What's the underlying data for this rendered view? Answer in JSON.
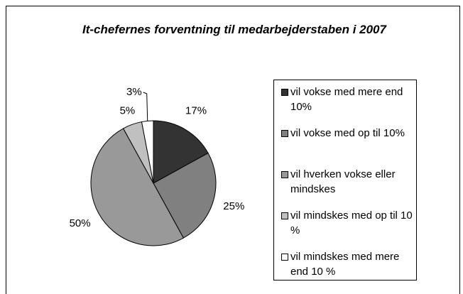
{
  "chart_data": {
    "type": "pie",
    "title": "It-chefernes forventning til medarbejderstaben i 2007",
    "categories": [
      "vil vokse med mere end 10%",
      "vil vokse med op til 10%",
      "vil hverken vokse eller mindskes",
      "vil mindskes med op til 10 %",
      "vil mindskes med mere end 10 %"
    ],
    "values": [
      17,
      25,
      50,
      5,
      3
    ],
    "value_labels": [
      "17%",
      "25%",
      "50%",
      "5%",
      "3%"
    ],
    "colors": [
      "#333333",
      "#808080",
      "#999999",
      "#c0c0c0",
      "#ffffff"
    ],
    "legend": "right"
  }
}
